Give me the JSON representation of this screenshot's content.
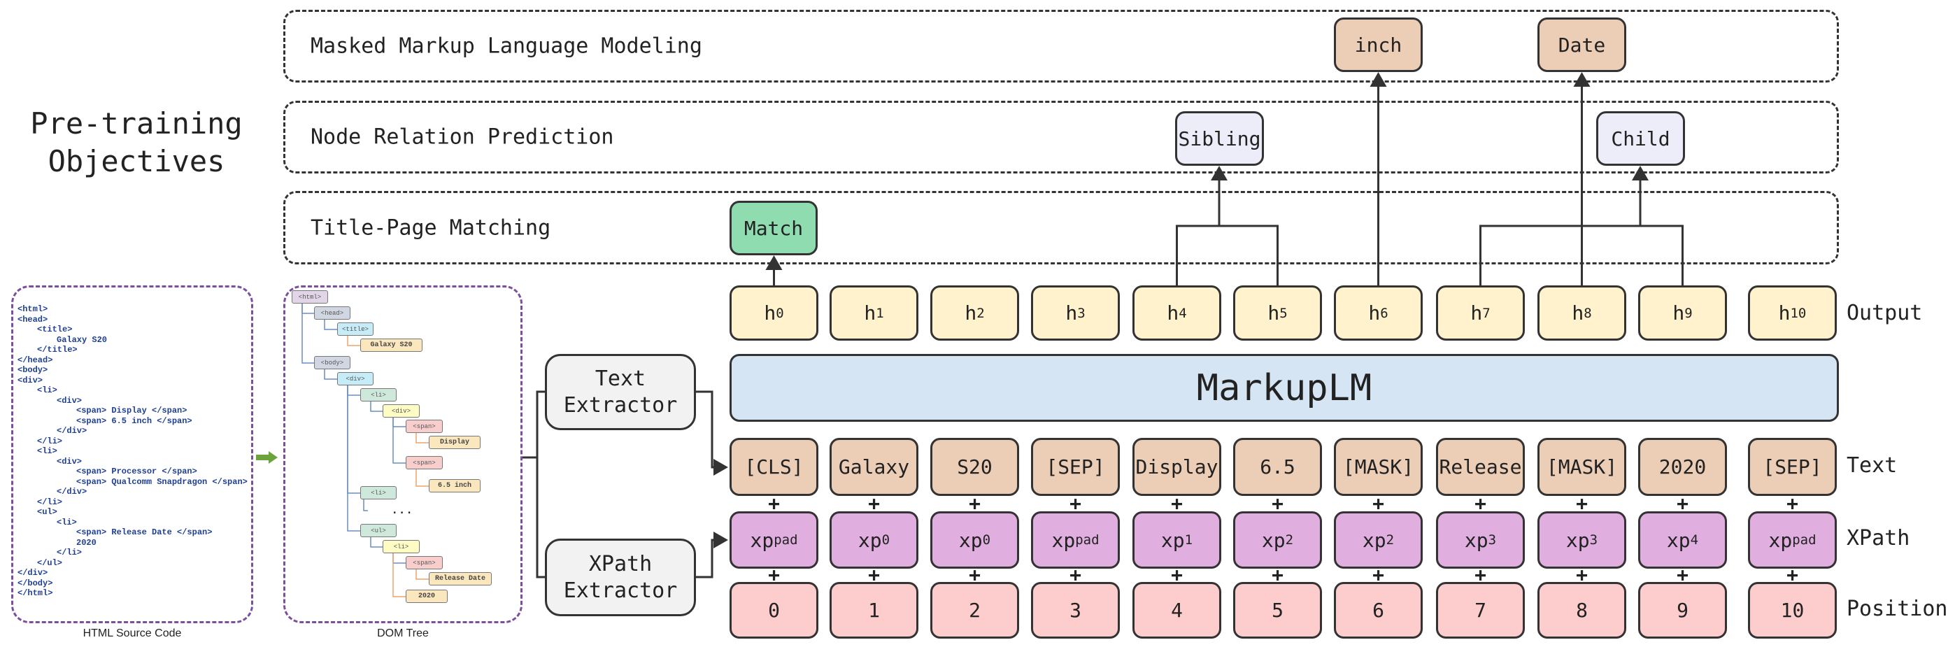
{
  "title": "Pre-training Objectives",
  "objectives": [
    {
      "label": "Masked Markup Language Modeling"
    },
    {
      "label": "Node Relation Prediction"
    },
    {
      "label": "Title-Page Matching"
    }
  ],
  "predictions": {
    "match": "Match",
    "sibling": "Sibling",
    "child": "Child",
    "mask_1": "inch",
    "mask_2": "Date"
  },
  "model_name": "MarkupLM",
  "row_labels": {
    "output": "Output",
    "text": "Text",
    "xpath": "XPath",
    "position": "Position"
  },
  "plus": "+",
  "columns": [
    {
      "output": {
        "base": "h",
        "sub": "0"
      },
      "text": "[CLS]",
      "xpath": {
        "base": "xp",
        "sub": "pad"
      },
      "position": "0"
    },
    {
      "output": {
        "base": "h",
        "sub": "1"
      },
      "text": "Galaxy",
      "xpath": {
        "base": "xp",
        "sub": "0"
      },
      "position": "1"
    },
    {
      "output": {
        "base": "h",
        "sub": "2"
      },
      "text": "S20",
      "xpath": {
        "base": "xp",
        "sub": "0"
      },
      "position": "2"
    },
    {
      "output": {
        "base": "h",
        "sub": "3"
      },
      "text": "[SEP]",
      "xpath": {
        "base": "xp",
        "sub": "pad"
      },
      "position": "3"
    },
    {
      "output": {
        "base": "h",
        "sub": "4"
      },
      "text": "Display",
      "xpath": {
        "base": "xp",
        "sub": "1"
      },
      "position": "4"
    },
    {
      "output": {
        "base": "h",
        "sub": "5"
      },
      "text": "6.5",
      "xpath": {
        "base": "xp",
        "sub": "2"
      },
      "position": "5"
    },
    {
      "output": {
        "base": "h",
        "sub": "6"
      },
      "text": "[MASK]",
      "xpath": {
        "base": "xp",
        "sub": "2"
      },
      "position": "6"
    },
    {
      "output": {
        "base": "h",
        "sub": "7"
      },
      "text": "Release",
      "xpath": {
        "base": "xp",
        "sub": "3"
      },
      "position": "7"
    },
    {
      "output": {
        "base": "h",
        "sub": "8"
      },
      "text": "[MASK]",
      "xpath": {
        "base": "xp",
        "sub": "3"
      },
      "position": "8"
    },
    {
      "output": {
        "base": "h",
        "sub": "9"
      },
      "text": "2020",
      "xpath": {
        "base": "xp",
        "sub": "4"
      },
      "position": "9"
    },
    {
      "output": {
        "base": "h",
        "sub": "10"
      },
      "text": "[SEP]",
      "xpath": {
        "base": "xp",
        "sub": "pad"
      },
      "position": "10"
    }
  ],
  "extractors": {
    "text": [
      "Text",
      "Extractor"
    ],
    "xpath": [
      "XPath",
      "Extractor"
    ]
  },
  "source_code": {
    "caption": "HTML Source Code",
    "lines": [
      {
        "indent": 0,
        "text": "<html>"
      },
      {
        "indent": 0,
        "text": "<head>"
      },
      {
        "indent": 1,
        "text": "<title>"
      },
      {
        "indent": 2,
        "text": "Galaxy S20"
      },
      {
        "indent": 1,
        "text": "</title>"
      },
      {
        "indent": 0,
        "text": "</head>"
      },
      {
        "indent": 0,
        "text": "<body>"
      },
      {
        "indent": 0,
        "text": "<div>"
      },
      {
        "indent": 1,
        "text": "<li>"
      },
      {
        "indent": 2,
        "text": "<div>"
      },
      {
        "indent": 3,
        "text": "<span> Display </span>"
      },
      {
        "indent": 3,
        "text": "<span> 6.5 inch </span>"
      },
      {
        "indent": 2,
        "text": "</div>"
      },
      {
        "indent": 1,
        "text": "</li>"
      },
      {
        "indent": 1,
        "text": "<li>"
      },
      {
        "indent": 2,
        "text": "<div>"
      },
      {
        "indent": 3,
        "text": "<span> Processor </span>"
      },
      {
        "indent": 3,
        "text": "<span> Qualcomm Snapdragon </span>"
      },
      {
        "indent": 2,
        "text": "</div>"
      },
      {
        "indent": 1,
        "text": "</li>"
      },
      {
        "indent": 1,
        "text": "<ul>"
      },
      {
        "indent": 2,
        "text": "<li>"
      },
      {
        "indent": 3,
        "text": "<span> Release Date </span>"
      },
      {
        "indent": 3,
        "text": "2020"
      },
      {
        "indent": 2,
        "text": "</li>"
      },
      {
        "indent": 1,
        "text": "</ul>"
      },
      {
        "indent": 0,
        "text": "</div>"
      },
      {
        "indent": 0,
        "text": "</body>"
      },
      {
        "indent": 0,
        "text": "</html>"
      }
    ]
  },
  "dom_tree": {
    "caption": "DOM Tree",
    "ellipsis": "...",
    "nodes": [
      {
        "label": "<html>",
        "parent": null,
        "kind": "html"
      },
      {
        "label": "<head>",
        "parent": 0,
        "kind": "section"
      },
      {
        "label": "<title>",
        "parent": 1,
        "kind": "container"
      },
      {
        "label": "Galaxy S20",
        "parent": 2,
        "kind": "text"
      },
      {
        "label": "<body>",
        "parent": 0,
        "kind": "section"
      },
      {
        "label": "<div>",
        "parent": 4,
        "kind": "container"
      },
      {
        "label": "<li>",
        "parent": 5,
        "kind": "list"
      },
      {
        "label": "<div>",
        "parent": 6,
        "kind": "inner"
      },
      {
        "label": "<span>",
        "parent": 7,
        "kind": "span"
      },
      {
        "label": "Display",
        "parent": 8,
        "kind": "text"
      },
      {
        "label": "<span>",
        "parent": 7,
        "kind": "span"
      },
      {
        "label": "6.5 inch",
        "parent": 10,
        "kind": "text"
      },
      {
        "label": "<li>",
        "parent": 5,
        "kind": "list"
      },
      {
        "label": "<ul>",
        "parent": 5,
        "kind": "list"
      },
      {
        "label": "<li>",
        "parent": 13,
        "kind": "inner"
      },
      {
        "label": "<span>",
        "parent": 14,
        "kind": "span"
      },
      {
        "label": "Release Date",
        "parent": 15,
        "kind": "text"
      },
      {
        "label": "2020",
        "parent": 14,
        "kind": "text"
      }
    ]
  },
  "colors": {
    "output": "#fff2cc",
    "text_token": "#eccdb6",
    "xpath_token": "#e0afe0",
    "position_token": "#fdcccc",
    "model": "#d5e5f4",
    "match": "#8fdcb0",
    "relation": "#ededf9",
    "panel_border": "#7b4f9e",
    "arrow_green": "#6aa43a",
    "dom_html": "#e1d5e7",
    "dom_section": "#d0d6e2",
    "dom_container": "#c6ecf7",
    "dom_list": "#cfe8dc",
    "dom_inner": "#fdfcc4",
    "dom_span": "#f8cecc",
    "dom_text": "#fbe7bd"
  }
}
